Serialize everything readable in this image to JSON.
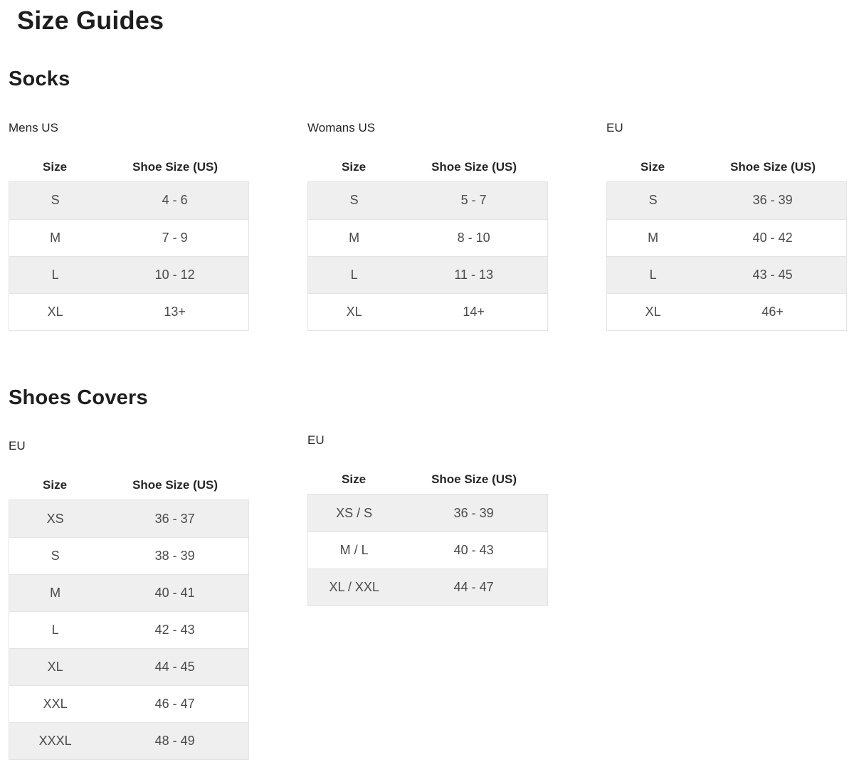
{
  "page": {
    "title": "Size Guides"
  },
  "colors": {
    "row_stripe": "#efefef",
    "table_border": "#e3e3e3",
    "heading_text": "#1e1e1e",
    "body_text": "#4a4a4a"
  },
  "sections": [
    {
      "title": "Socks",
      "tables": [
        {
          "label": "Mens US",
          "columns": [
            "Size",
            "Shoe Size (US)"
          ],
          "rows": [
            [
              "S",
              "4 - 6"
            ],
            [
              "M",
              "7 - 9"
            ],
            [
              "L",
              "10 - 12"
            ],
            [
              "XL",
              "13+"
            ]
          ]
        },
        {
          "label": "Womans US",
          "columns": [
            "Size",
            "Shoe Size (US)"
          ],
          "rows": [
            [
              "S",
              "5 - 7"
            ],
            [
              "M",
              "8 - 10"
            ],
            [
              "L",
              "11 - 13"
            ],
            [
              "XL",
              "14+"
            ]
          ]
        },
        {
          "label": "EU",
          "columns": [
            "Size",
            "Shoe Size (US)"
          ],
          "rows": [
            [
              "S",
              "36 - 39"
            ],
            [
              "M",
              "40 - 42"
            ],
            [
              "L",
              "43 - 45"
            ],
            [
              "XL",
              "46+"
            ]
          ]
        }
      ]
    },
    {
      "title": "Shoes Covers",
      "tables": [
        {
          "label": "EU",
          "columns": [
            "Size",
            "Shoe Size (US)"
          ],
          "rows": [
            [
              "XS",
              "36 - 37"
            ],
            [
              "S",
              "38 - 39"
            ],
            [
              "M",
              "40 - 41"
            ],
            [
              "L",
              "42 - 43"
            ],
            [
              "XL",
              "44 - 45"
            ],
            [
              "XXL",
              "46 - 47"
            ],
            [
              "XXXL",
              "48 - 49"
            ]
          ]
        },
        {
          "label": "EU",
          "columns": [
            "Size",
            "Shoe Size (US)"
          ],
          "rows": [
            [
              "XS / S",
              "36 - 39"
            ],
            [
              "M / L",
              "40 - 43"
            ],
            [
              "XL / XXL",
              "44 - 47"
            ]
          ]
        }
      ]
    }
  ]
}
